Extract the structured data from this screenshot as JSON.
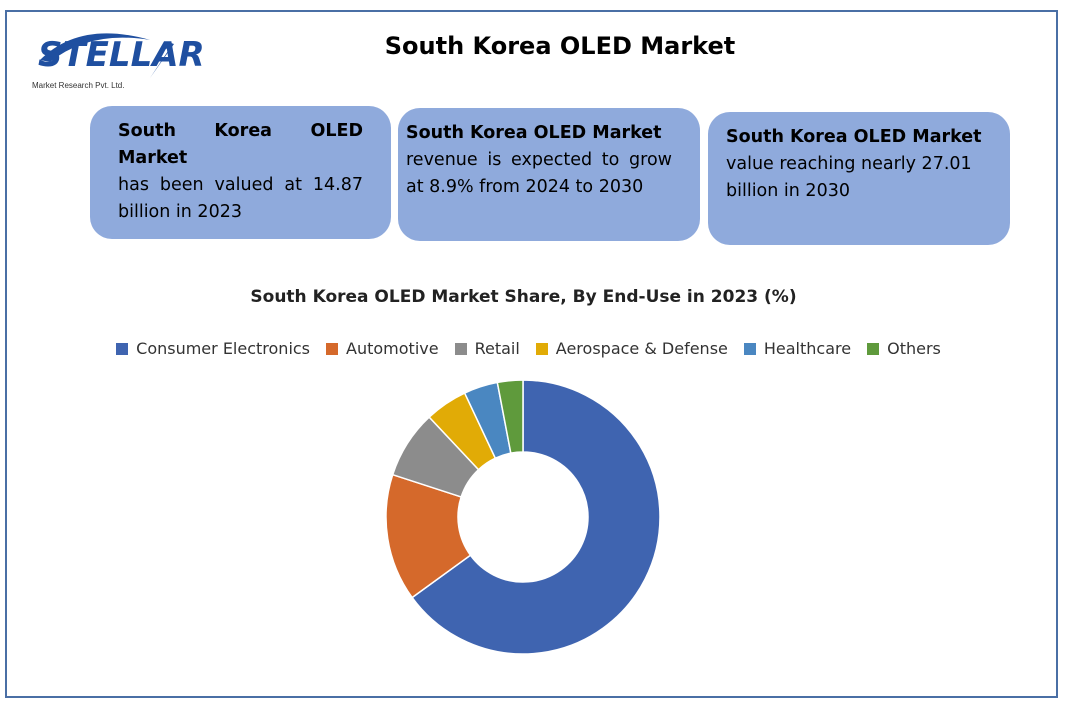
{
  "logo": {
    "name": "STELLAR",
    "tagline": "Market Research Pvt. Ltd."
  },
  "header": {
    "title": "South Korea OLED Market"
  },
  "cards": [
    {
      "title": "South Korea OLED Market",
      "text": "has been valued at 14.87 billion in 2023"
    },
    {
      "title": "South Korea OLED Market",
      "text": "revenue is expected to grow at 8.9% from 2024 to 2030"
    },
    {
      "title": "South Korea OLED Market",
      "text": "value reaching nearly 27.01 billion in 2030"
    }
  ],
  "chart_data": {
    "type": "donut",
    "title": "South Korea OLED Market Share, By End-Use in 2023 (%)",
    "categories": [
      "Consumer Electronics",
      "Automotive",
      "Retail",
      "Aerospace & Defense",
      "Healthcare",
      "Others"
    ],
    "values": [
      65,
      15,
      8,
      5,
      4,
      3
    ],
    "colors": [
      "#3f64b0",
      "#d5692b",
      "#8c8c8c",
      "#e1ab06",
      "#4a87c1",
      "#5f9a3c"
    ],
    "legend": "top"
  }
}
